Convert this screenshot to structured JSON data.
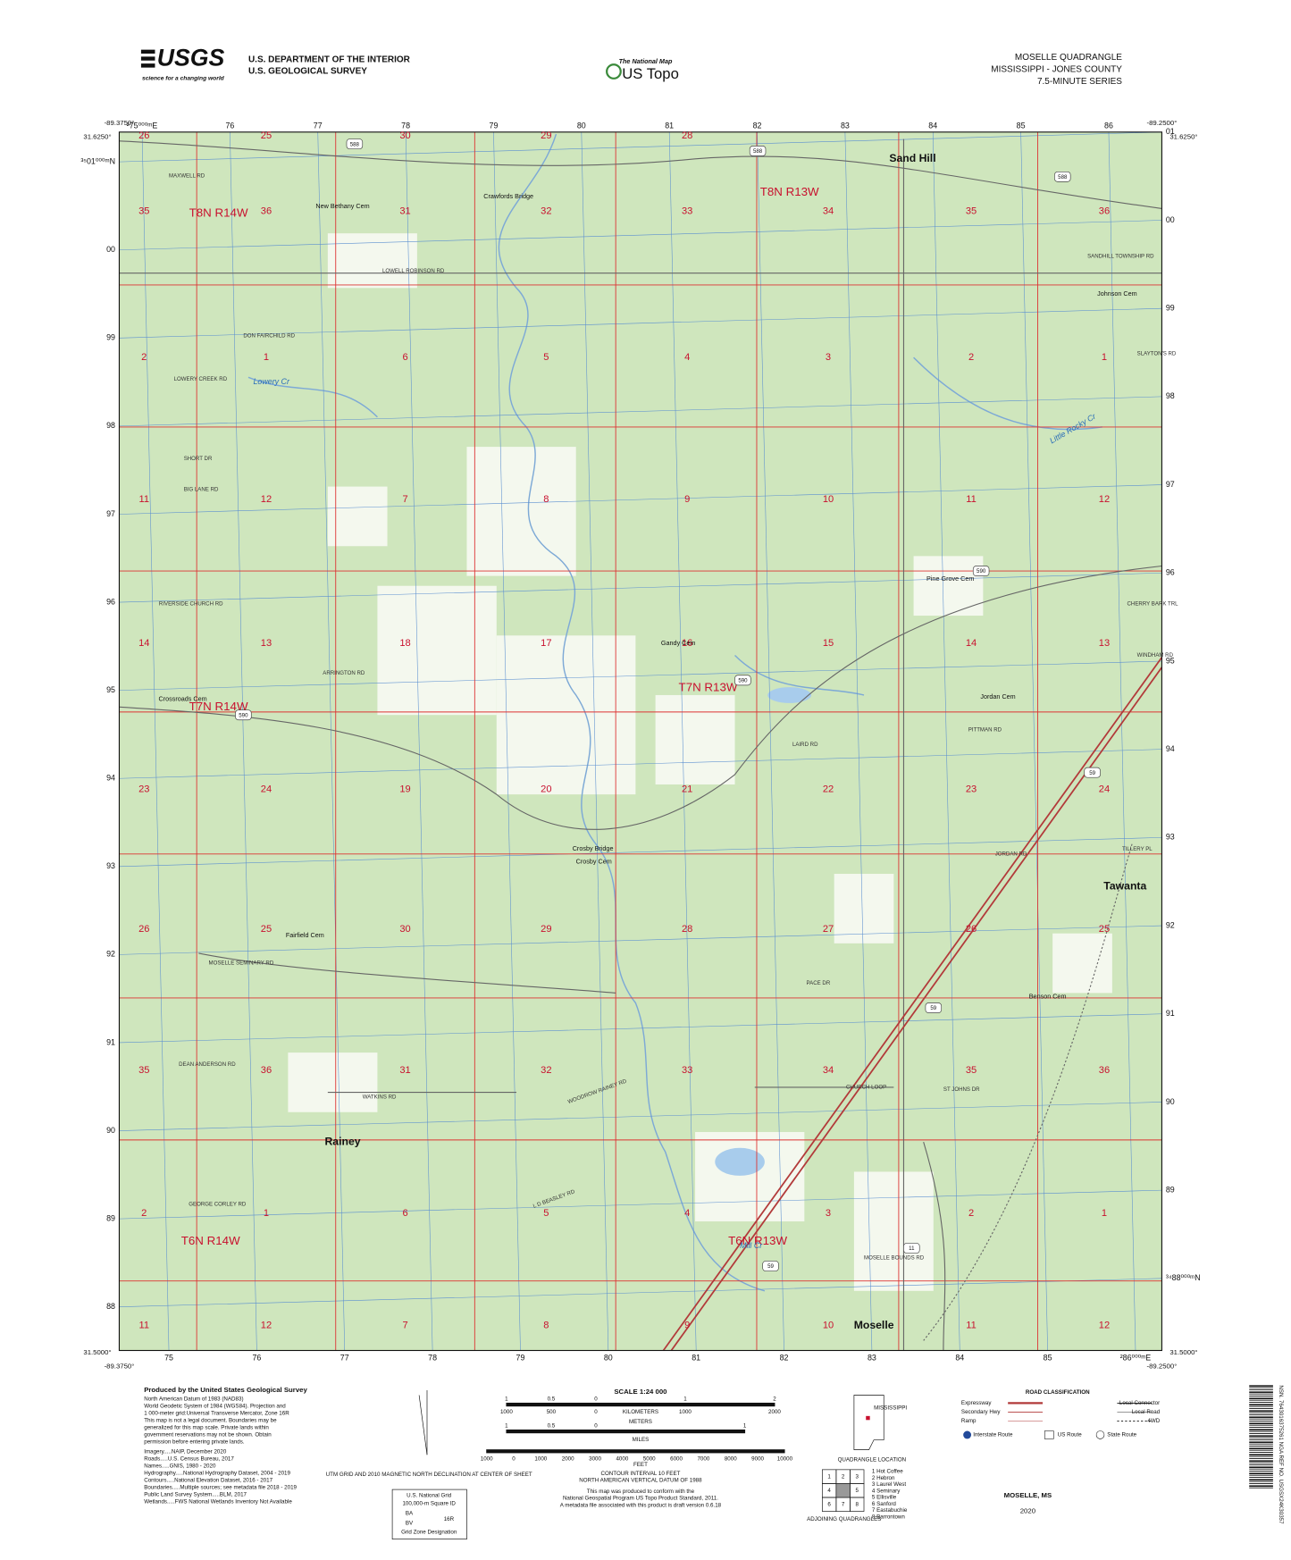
{
  "header": {
    "usgs": "USGS",
    "usgs_tagline": "science for a changing world",
    "dept": "U.S. DEPARTMENT OF THE INTERIOR",
    "survey": "U.S. GEOLOGICAL SURVEY",
    "national_map": "The National Map",
    "us_topo": "US Topo",
    "quad": "MOSELLE QUADRANGLE",
    "state": "MISSISSIPPI - JONES COUNTY",
    "series": "7.5-MINUTE SERIES"
  },
  "map": {
    "corners": {
      "top_left_lon": "-89.3750°",
      "top_left_lat": "31.6250°",
      "top_right_lon": "-89.2500°",
      "top_right_lat": "31.6250°",
      "bottom_left_lat": "31.5000°",
      "bottom_left_lon": "-89.3750°",
      "bottom_right_lat": "31.5000°",
      "bottom_right_lon": "-89.2500°"
    },
    "eastings_top": [
      "²75⁰⁰⁰ᵐE",
      "76",
      "77",
      "78",
      "79",
      "80",
      "81",
      "82",
      "83",
      "84",
      "85",
      "86"
    ],
    "eastings_bottom": [
      "75",
      "76",
      "77",
      "78",
      "79",
      "80",
      "81",
      "82",
      "83",
      "84",
      "85",
      "²86⁰⁰⁰ᵐE"
    ],
    "northings_left": [
      "³⁵01⁰⁰⁰ᵐN",
      "00",
      "99",
      "98",
      "97",
      "96",
      "95",
      "94",
      "93",
      "92",
      "91",
      "90",
      "89",
      "88"
    ],
    "northings_right": [
      "01",
      "00",
      "99",
      "98",
      "97",
      "96",
      "95",
      "94",
      "93",
      "92",
      "91",
      "90",
      "89",
      "³⁴88⁰⁰⁰ᵐN"
    ],
    "townships": [
      "T8N R14W",
      "T8N R13W",
      "T7N R14W",
      "T7N R13W",
      "T6N R14W",
      "T6N R13W"
    ],
    "places": [
      "Sand Hill",
      "Crawfords Bridge",
      "New Bethany Cem",
      "Johnson Cem",
      "Pine Grove Cem",
      "Gandy Cem",
      "Jordan Cem",
      "Crossroads Cem",
      "Crosby Bridge",
      "Crosby Cem",
      "Fairfield Cem",
      "Tawanta",
      "Benson Cem",
      "Rainey",
      "Moselle"
    ],
    "roads": [
      "MAXWELL RD",
      "LOWELL ROBINSON RD",
      "DON FAIRCHILD RD",
      "LOWERY CREEK RD",
      "SHORT DR",
      "BIG LANE RD",
      "RIVERSIDE CHURCH RD",
      "ARRINGTON RD",
      "MOSELLE SEMINARY RD",
      "DEAN ANDERSON RD",
      "WATKINS RD",
      "GEORGE CORLEY RD",
      "SANDHILL TOWNSHIP RD",
      "SLAYTON'S RD",
      "CHERRY BARK TRL",
      "WINDHAM RD",
      "LAIRD RD",
      "PITTMAN RD",
      "JORDAN RD",
      "TILLERY PL",
      "PACE DR",
      "CHURCH LOOP",
      "ST JOHNS DR",
      "MOSELLE BOUNDS RD",
      "WOODROW RAINEY RD",
      "L D BEASLEY RD"
    ],
    "streams": [
      "Lowery Cr",
      "Little Rocky Cr",
      "Mill Cr"
    ],
    "routes": [
      "588",
      "588",
      "588",
      "590",
      "590",
      "590",
      "11",
      "59",
      "59",
      "59"
    ],
    "sections": [
      [
        "26",
        "25",
        "30",
        "29",
        "28"
      ],
      [
        "35",
        "36",
        "31",
        "32",
        "33",
        "34",
        "35",
        "36"
      ],
      [
        "2",
        "1",
        "6",
        "5",
        "4",
        "3",
        "2",
        "1"
      ],
      [
        "11",
        "12",
        "7",
        "8",
        "9",
        "10",
        "11",
        "12"
      ],
      [
        "14",
        "13",
        "18",
        "17",
        "16",
        "15",
        "14",
        "13"
      ],
      [
        "23",
        "24",
        "19",
        "20",
        "21",
        "22",
        "23",
        "24"
      ],
      [
        "26",
        "25",
        "30",
        "29",
        "28",
        "27",
        "26",
        "25"
      ],
      [
        "35",
        "36",
        "31",
        "32",
        "33",
        "34",
        "35",
        "36"
      ],
      [
        "2",
        "1",
        "6",
        "5",
        "4",
        "3",
        "2",
        "1"
      ],
      [
        "11",
        "12",
        "7",
        "8",
        "9",
        "10",
        "11",
        "12"
      ]
    ]
  },
  "footer": {
    "produced": "Produced by the United States Geological Survey",
    "notes": [
      "North American Datum of 1983 (NAD83)",
      "World Geodetic System of 1984 (WGS84). Projection and",
      "1 000-meter grid:Universal Transverse Mercator, Zone 16R",
      "This map is not a legal document. Boundaries may be",
      "generalized for this map scale. Private lands within",
      "government reservations may not be shown. Obtain",
      "permission before entering private lands."
    ],
    "sources": [
      "Imagery.....NAIP, December 2020",
      "Roads.....U.S. Census Bureau, 2017",
      "Names.....GNIS, 1980 - 2020",
      "Hydrography.....National Hydrography Dataset, 2004 - 2019",
      "Contours.....National Elevation Dataset, 2016 - 2017",
      "Boundaries.....Multiple sources; see metadata file 2018 - 2019",
      "Public Land Survey System.....BLM, 2017",
      "Wetlands.....FWS National Wetlands Inventory Not Available"
    ],
    "declination": "UTM GRID AND 2010 MAGNETIC NORTH DECLINATION AT CENTER OF SHEET",
    "grid_box": [
      "U.S. National Grid",
      "100,000-m Square ID",
      "BA",
      "BV",
      "Grid Zone Designation",
      "16R"
    ],
    "scale": "SCALE 1:24 000",
    "km": "KILOMETERS",
    "meters": "METERS",
    "miles": "MILES",
    "feet": "FEET",
    "km_ticks": [
      "1",
      "0.5",
      "0",
      "1",
      "2"
    ],
    "m_ticks": [
      "1000",
      "500",
      "0",
      "1000",
      "2000"
    ],
    "mi_ticks": [
      "1",
      "0.5",
      "0",
      "1"
    ],
    "ft_ticks": [
      "1000",
      "0",
      "1000",
      "2000",
      "3000",
      "4000",
      "5000",
      "6000",
      "7000",
      "8000",
      "9000",
      "10000"
    ],
    "contour": [
      "CONTOUR INTERVAL 10 FEET",
      "NORTH AMERICAN VERTICAL DATUM OF 1988"
    ],
    "standard": [
      "This map was produced to conform with the",
      "National Geospatial Program US Topo Product Standard, 2011.",
      "A metadata file associated with this product is draft version 0.6.18"
    ],
    "location": [
      "MISSISSIPPI",
      "QUADRANGLE LOCATION"
    ],
    "adjoining_cells": [
      "1",
      "2",
      "3",
      "4",
      "5",
      "6",
      "7",
      "8"
    ],
    "adjoining": [
      "1 Hot Coffee",
      "2 Hebron",
      "3 Laurel West",
      "4 Seminary",
      "5 Ellisville",
      "6 Sanford",
      "7 Eastabuchie",
      "8 Barrontown"
    ],
    "adjoining_title": "ADJOINING QUADRANGLES",
    "road_legend": [
      "ROAD CLASSIFICATION",
      "Expressway",
      "Secondary Hwy",
      "Ramp",
      "Interstate Route",
      "Local Connector",
      "Local Road",
      "4WD",
      "US Route",
      "State Route"
    ],
    "title": "MOSELLE, MS",
    "year": "2020",
    "barcode": "NSN. 7643016375261 NGA REF NO. USGSX24K30357"
  }
}
